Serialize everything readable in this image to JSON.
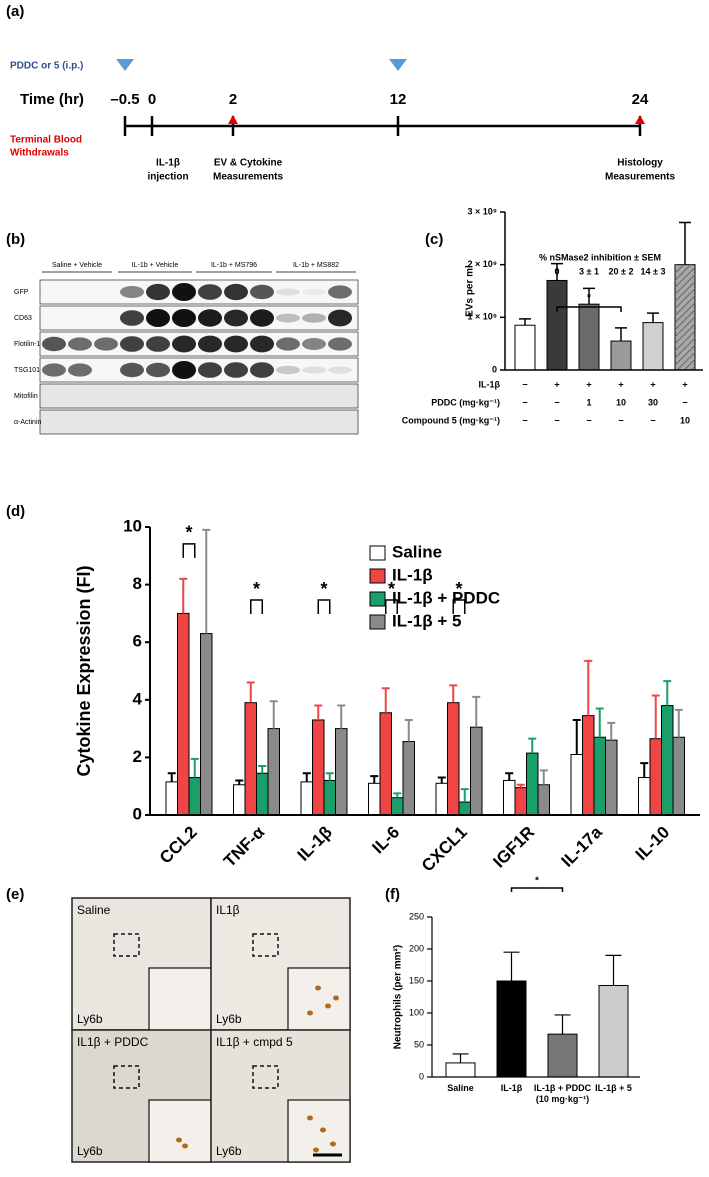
{
  "timeline": {
    "panel": "(a)",
    "drug_label": "PDDC or 5 (i.p.)",
    "axis_label": "Time (hr)",
    "blood_label": [
      "Terminal Blood",
      "Withdrawals"
    ],
    "ticks": [
      "–0.5",
      "0",
      "2",
      "12",
      "24"
    ],
    "events": [
      [
        "IL-1β",
        "injection"
      ],
      [
        "EV & Cytokine",
        "Measurements"
      ],
      [
        "Histology",
        "Measurements"
      ]
    ]
  },
  "blot": {
    "panel": "(b)",
    "groups": [
      "Saline + Vehicle",
      "IL-1b + Vehicle",
      "IL-1b + MS796",
      "IL-1b + MS882"
    ],
    "rows": [
      "GFP",
      "CD63",
      "Flotilin-1",
      "TSG101",
      "Mitofilin",
      "α-Actinin"
    ]
  },
  "chart_data": [
    {
      "type": "bar",
      "panel": "(c)",
      "ylabel": "EVs per ml",
      "annotation": "% nSMase2 inhibition ± SEM",
      "values": [
        850000000,
        1700000000,
        1250000000,
        550000000,
        900000000,
        2000000000
      ],
      "errors": [
        120000000,
        320000000,
        300000000,
        250000000,
        180000000,
        800000000
      ],
      "colors": [
        "#ffffff",
        "#3a3a3a",
        "#6a6a6a",
        "#9a9a9a",
        "#d0d0d0",
        "#a8a8a8"
      ],
      "hatched": [
        false,
        false,
        false,
        false,
        false,
        true
      ],
      "inhibition_labels": [
        null,
        "0",
        "3 ± 1",
        "20 ± 2",
        "14 ± 3",
        null
      ],
      "significance": [
        {
          "from": 1,
          "to": 3,
          "label": "*"
        }
      ],
      "treatment_table": [
        {
          "label": "IL-1β",
          "cells": [
            "−",
            "+",
            "+",
            "+",
            "+",
            "+"
          ]
        },
        {
          "label": "PDDC (mg·kg⁻¹)",
          "cells": [
            "−",
            "−",
            "1",
            "10",
            "30",
            "−"
          ]
        },
        {
          "label": "Compound 5 (mg·kg⁻¹)",
          "cells": [
            "−",
            "−",
            "−",
            "−",
            "−",
            "10"
          ]
        }
      ],
      "ylim": [
        0,
        3000000000
      ],
      "yticks": [
        0,
        {
          "value": 1000000000,
          "label": "1 × 10⁹"
        },
        {
          "value": 2000000000,
          "label": "2 × 10⁹"
        },
        {
          "value": 3000000000,
          "label": "3 × 10⁹"
        }
      ]
    },
    {
      "type": "bar",
      "panel": "(d)",
      "ylabel": "Cytokine Expression (FI)",
      "categories": [
        "CCL2",
        "TNF-α",
        "IL-1β",
        "IL-6",
        "CXCL1",
        "IGF1R",
        "IL-17a",
        "IL-10"
      ],
      "series": [
        {
          "name": "Saline",
          "color": "#ffffff",
          "values": [
            1.15,
            1.05,
            1.15,
            1.1,
            1.1,
            1.2,
            2.1,
            1.3
          ],
          "errors": [
            0.3,
            0.15,
            0.3,
            0.25,
            0.2,
            0.25,
            1.2,
            0.5
          ]
        },
        {
          "name": "IL-1β",
          "color": "#f04545",
          "values": [
            7.0,
            3.9,
            3.3,
            3.55,
            3.9,
            0.95,
            3.45,
            2.65
          ],
          "errors": [
            1.2,
            0.7,
            0.5,
            0.85,
            0.6,
            0.1,
            1.9,
            1.5
          ]
        },
        {
          "name": "IL-1β + PDDC",
          "color": "#1a9e6a",
          "values": [
            1.3,
            1.45,
            1.2,
            0.6,
            0.45,
            2.15,
            2.7,
            3.8
          ],
          "errors": [
            0.65,
            0.25,
            0.25,
            0.15,
            0.45,
            0.5,
            1.0,
            0.85
          ]
        },
        {
          "name": "IL-1β + 5",
          "color": "#8a8a8a",
          "values": [
            6.3,
            3.0,
            3.0,
            2.55,
            3.05,
            1.05,
            2.6,
            2.7
          ],
          "errors": [
            3.6,
            0.95,
            0.8,
            0.75,
            1.05,
            0.5,
            0.6,
            0.95
          ]
        }
      ],
      "significance": [
        "*",
        "*",
        "*",
        "*",
        "*",
        null,
        null,
        null
      ],
      "ylim": [
        0,
        10
      ],
      "yticks": [
        0,
        2,
        4,
        6,
        8,
        10
      ],
      "legend": "upper right"
    },
    {
      "type": "bar",
      "panel": "(f)",
      "ylabel": "Neutrophils (per mm²)",
      "categories": [
        "Saline",
        "IL-1β",
        "IL-1β + PDDC (10 mg·kg⁻¹)",
        "IL-1β + 5"
      ],
      "values": [
        22,
        150,
        67,
        143
      ],
      "errors": [
        14,
        45,
        30,
        47
      ],
      "colors": [
        "#ffffff",
        "#000000",
        "#777777",
        "#cccccc"
      ],
      "significance": [
        {
          "from": 1,
          "to": 2,
          "label": "*"
        }
      ],
      "ylim": [
        0,
        250
      ],
      "yticks": [
        0,
        50,
        100,
        150,
        200,
        250
      ]
    }
  ],
  "histology": {
    "panel": "(e)",
    "images": [
      {
        "label": "Saline",
        "stain": "Ly6b"
      },
      {
        "label": "IL1β",
        "stain": "Ly6b"
      },
      {
        "label": "IL1β + PDDC",
        "stain": "Ly6b"
      },
      {
        "label": "IL1β + cmpd  5",
        "stain": "Ly6b"
      }
    ]
  }
}
